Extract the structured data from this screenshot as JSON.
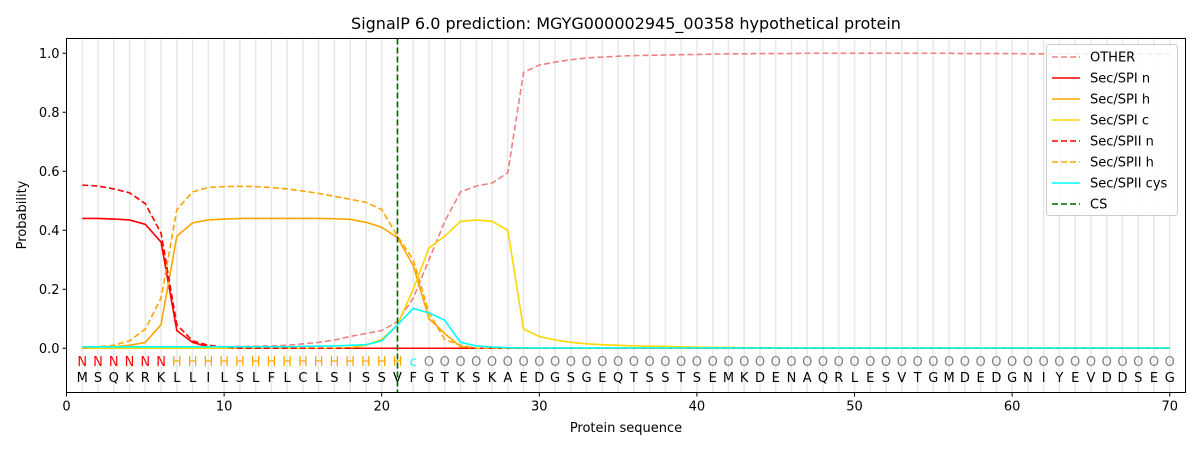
{
  "chart_data": {
    "type": "line",
    "title": "SignalP 6.0 prediction: MGYG000002945_00358 hypothetical protein",
    "xlabel": "Protein sequence",
    "ylabel": "Probability",
    "xlim": [
      0,
      71
    ],
    "ylim": [
      -0.15,
      1.05
    ],
    "xticks": [
      0,
      10,
      20,
      30,
      40,
      50,
      60,
      70
    ],
    "yticks": [
      0.0,
      0.2,
      0.4,
      0.6,
      0.8,
      1.0
    ],
    "legend_position": "top-right",
    "sequence": "MSQKRKLLILSLFLCLSISSVFGTKSKAEDGSGEQTSSTSEMKDENAQRLESVTGMDEDGNIYEVDDSEG",
    "labels": "NNNNNNHHHHHHHHHHHHHHHcOOOOOOOOOOOOOOOOOOOOOOOOOOOOOOOOOOOOOOOOOOOOOOOO",
    "label_colors": {
      "N": "#ff0000",
      "H": "#ffa500",
      "c": "#00ffff",
      "O": "#808080"
    },
    "cs_position": 21,
    "series": [
      {
        "name": "OTHER",
        "color": "#f08080",
        "dash": true,
        "values": [
          0,
          0,
          0,
          0,
          0,
          0,
          0.002,
          0.003,
          0.004,
          0.005,
          0.006,
          0.007,
          0.008,
          0.01,
          0.015,
          0.02,
          0.028,
          0.04,
          0.05,
          0.06,
          0.09,
          0.17,
          0.3,
          0.43,
          0.53,
          0.55,
          0.56,
          0.595,
          0.935,
          0.96,
          0.97,
          0.978,
          0.984,
          0.987,
          0.99,
          0.992,
          0.993,
          0.994,
          0.995,
          0.996,
          0.997,
          0.998,
          0.998,
          0.999,
          0.999,
          0.999,
          1,
          1,
          1,
          1,
          1,
          1,
          1,
          1,
          1,
          1,
          0.999,
          0.999,
          0.999,
          0.999,
          0.998,
          0.998,
          0.998,
          0.998,
          0.998,
          0.998,
          0.998,
          0.998,
          0.998,
          0.998
        ]
      },
      {
        "name": "Sec/SPI n",
        "color": "#ff0000",
        "dash": false,
        "values": [
          0.44,
          0.44,
          0.438,
          0.435,
          0.42,
          0.36,
          0.06,
          0.02,
          0.005,
          0.002,
          0,
          0,
          0,
          0,
          0,
          0,
          0,
          0,
          0,
          0,
          0,
          0,
          0,
          0,
          0,
          0,
          0,
          0,
          0,
          0,
          0,
          0,
          0,
          0,
          0,
          0,
          0,
          0,
          0,
          0,
          0,
          0,
          0,
          0,
          0,
          0,
          0,
          0,
          0,
          0,
          0,
          0,
          0,
          0,
          0,
          0,
          0,
          0,
          0,
          0,
          0,
          0,
          0,
          0,
          0,
          0,
          0,
          0,
          0,
          0
        ]
      },
      {
        "name": "Sec/SPI h",
        "color": "#ffa500",
        "dash": false,
        "values": [
          0,
          0,
          0.005,
          0.01,
          0.02,
          0.08,
          0.38,
          0.425,
          0.435,
          0.438,
          0.44,
          0.44,
          0.44,
          0.44,
          0.44,
          0.44,
          0.439,
          0.437,
          0.427,
          0.41,
          0.375,
          0.28,
          0.1,
          0.05,
          0.005,
          0,
          0,
          0,
          0,
          0,
          0,
          0,
          0,
          0,
          0,
          0,
          0,
          0,
          0,
          0,
          0,
          0,
          0,
          0,
          0,
          0,
          0,
          0,
          0,
          0,
          0,
          0,
          0,
          0,
          0,
          0,
          0,
          0,
          0,
          0,
          0,
          0,
          0,
          0,
          0,
          0,
          0,
          0,
          0,
          0
        ]
      },
      {
        "name": "Sec/SPI c",
        "color": "#ffd700",
        "dash": false,
        "values": [
          0,
          0,
          0,
          0,
          0,
          0,
          0,
          0,
          0,
          0,
          0,
          0,
          0,
          0,
          0,
          0,
          0,
          0.002,
          0.01,
          0.03,
          0.08,
          0.2,
          0.34,
          0.38,
          0.43,
          0.435,
          0.43,
          0.4,
          0.065,
          0.04,
          0.028,
          0.02,
          0.015,
          0.012,
          0.01,
          0.008,
          0.007,
          0.006,
          0.005,
          0.004,
          0.003,
          0.003,
          0.002,
          0.002,
          0.002,
          0.001,
          0.001,
          0.001,
          0.001,
          0.001,
          0.001,
          0.001,
          0.001,
          0.001,
          0.001,
          0.001,
          0.001,
          0.001,
          0.001,
          0.001,
          0.001,
          0.001,
          0.001,
          0.001,
          0.001,
          0.001,
          0.001,
          0.001,
          0.001,
          0.001
        ]
      },
      {
        "name": "Sec/SPII n",
        "color": "#ff0000",
        "dash": true,
        "values": [
          0.553,
          0.55,
          0.54,
          0.527,
          0.49,
          0.39,
          0.08,
          0.025,
          0.01,
          0.004,
          0,
          0,
          0,
          0,
          0,
          0,
          0,
          0,
          0,
          0,
          0,
          0,
          0,
          0,
          0,
          0,
          0,
          0,
          0,
          0,
          0,
          0,
          0,
          0,
          0,
          0,
          0,
          0,
          0,
          0,
          0,
          0,
          0,
          0,
          0,
          0,
          0,
          0,
          0,
          0,
          0,
          0,
          0,
          0,
          0,
          0,
          0,
          0,
          0,
          0,
          0,
          0,
          0,
          0,
          0,
          0,
          0,
          0,
          0,
          0
        ]
      },
      {
        "name": "Sec/SPII h",
        "color": "#ffa500",
        "dash": true,
        "values": [
          0,
          0.005,
          0.01,
          0.025,
          0.065,
          0.17,
          0.47,
          0.53,
          0.545,
          0.548,
          0.549,
          0.548,
          0.545,
          0.54,
          0.533,
          0.525,
          0.515,
          0.505,
          0.495,
          0.47,
          0.38,
          0.3,
          0.12,
          0.03,
          0.01,
          0,
          0,
          0,
          0,
          0,
          0,
          0,
          0,
          0,
          0,
          0,
          0,
          0,
          0,
          0,
          0,
          0,
          0,
          0,
          0,
          0,
          0,
          0,
          0,
          0,
          0,
          0,
          0,
          0,
          0,
          0,
          0,
          0,
          0,
          0,
          0,
          0,
          0,
          0,
          0,
          0,
          0,
          0,
          0,
          0
        ]
      },
      {
        "name": "Sec/SPII cys",
        "color": "#00ffff",
        "dash": false,
        "values": [
          0.005,
          0.005,
          0.005,
          0.005,
          0.005,
          0.005,
          0.005,
          0.005,
          0.005,
          0.005,
          0.005,
          0.005,
          0.005,
          0.005,
          0.006,
          0.007,
          0.008,
          0.01,
          0.012,
          0.025,
          0.08,
          0.135,
          0.12,
          0.095,
          0.02,
          0.008,
          0.004,
          0.002,
          0.001,
          0.001,
          0.001,
          0.001,
          0.001,
          0.001,
          0.001,
          0.001,
          0.001,
          0.001,
          0.001,
          0.001,
          0.001,
          0.001,
          0.001,
          0.001,
          0.001,
          0.001,
          0.001,
          0.001,
          0.001,
          0.001,
          0.001,
          0.001,
          0.001,
          0.001,
          0.001,
          0.001,
          0.001,
          0.001,
          0.001,
          0.001,
          0.001,
          0.001,
          0.001,
          0.001,
          0.001,
          0.001,
          0.001,
          0.001,
          0.001,
          0.001
        ]
      }
    ],
    "cs_legend": {
      "name": "CS",
      "color": "#006400"
    }
  }
}
